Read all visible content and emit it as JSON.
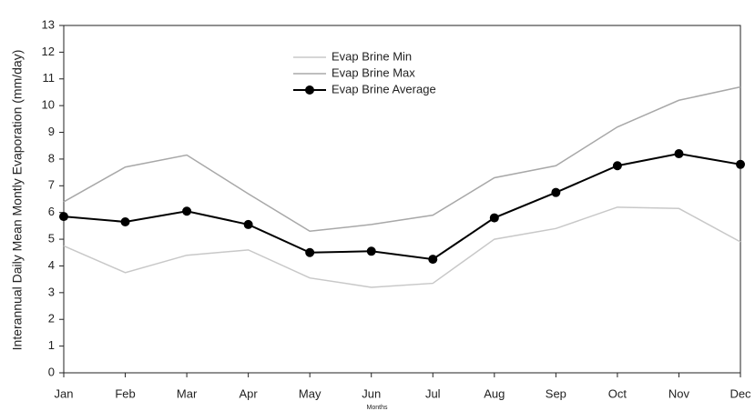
{
  "chart_data": {
    "type": "line",
    "y_label": "Interannual Daily Mean Montly Evaporation (mm/day)",
    "x_label": "Months",
    "categories": [
      "Jan",
      "Feb",
      "Mar",
      "Apr",
      "May",
      "Jun",
      "Jul",
      "Aug",
      "Sep",
      "Oct",
      "Nov",
      "Dec"
    ],
    "series": [
      {
        "name": "Evap Brine Min",
        "color": "#c8c8c8",
        "markers": false,
        "values": [
          4.75,
          3.75,
          4.4,
          4.6,
          3.55,
          3.2,
          3.35,
          5.0,
          5.4,
          6.2,
          6.15,
          4.9
        ]
      },
      {
        "name": "Evap Brine Max",
        "color": "#a8a8a8",
        "markers": false,
        "values": [
          6.4,
          7.7,
          8.15,
          6.7,
          5.3,
          5.55,
          5.9,
          7.3,
          7.75,
          9.2,
          10.2,
          10.7
        ]
      },
      {
        "name": "Evap Brine Average",
        "color": "#000000",
        "markers": true,
        "values": [
          5.85,
          5.65,
          6.05,
          5.55,
          4.5,
          4.55,
          4.25,
          5.8,
          6.75,
          7.75,
          8.2,
          7.8
        ]
      }
    ],
    "ylim": [
      0,
      13
    ],
    "yticks": [
      0,
      1,
      2,
      3,
      4,
      5,
      6,
      7,
      8,
      9,
      10,
      11,
      12,
      13
    ],
    "grid": false,
    "legend": "top"
  }
}
